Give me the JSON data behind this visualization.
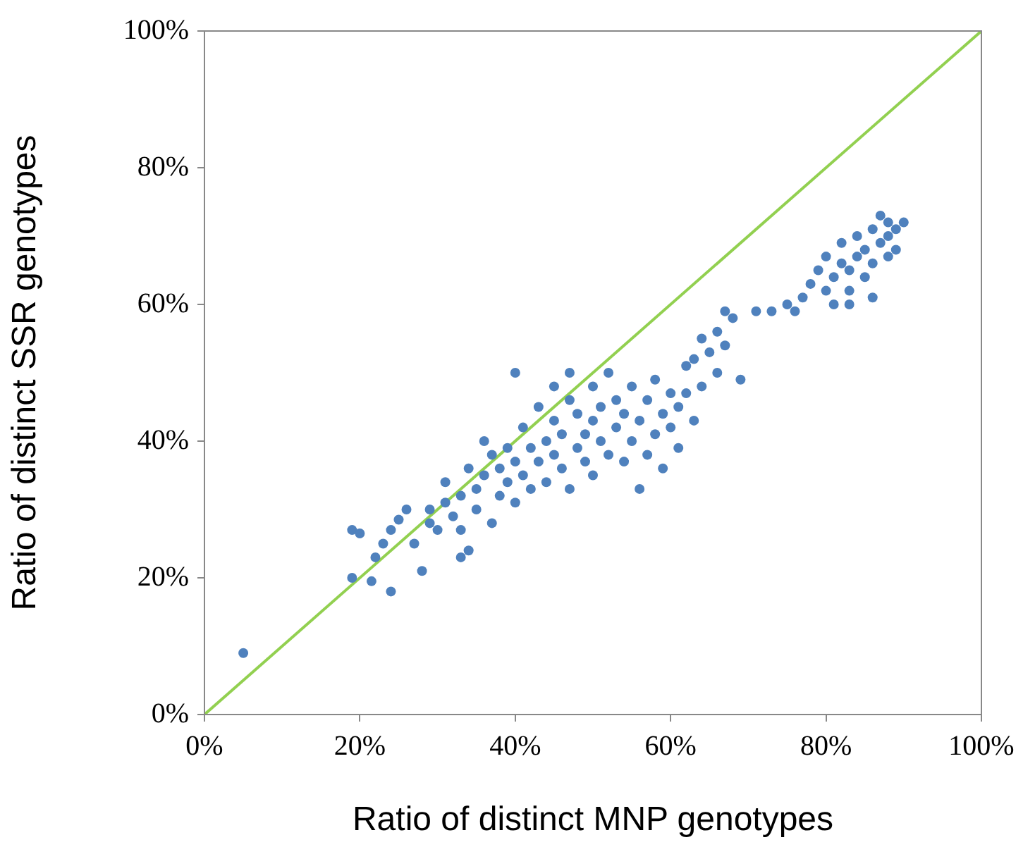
{
  "chart_data": {
    "type": "scatter",
    "xlabel": "Ratio of distinct MNP genotypes",
    "ylabel": "Ratio of distinct SSR genotypes",
    "xlim": [
      0,
      100
    ],
    "ylim": [
      0,
      100
    ],
    "xticks": [
      {
        "value": 0,
        "label": "0%"
      },
      {
        "value": 20,
        "label": "20%"
      },
      {
        "value": 40,
        "label": "40%"
      },
      {
        "value": 60,
        "label": "60%"
      },
      {
        "value": 80,
        "label": "80%"
      },
      {
        "value": 100,
        "label": "100%"
      }
    ],
    "yticks": [
      {
        "value": 0,
        "label": "0%"
      },
      {
        "value": 20,
        "label": "20%"
      },
      {
        "value": 40,
        "label": "40%"
      },
      {
        "value": 60,
        "label": "60%"
      },
      {
        "value": 80,
        "label": "80%"
      },
      {
        "value": 100,
        "label": "100%"
      }
    ],
    "grid": false,
    "legend": false,
    "marker": "circle",
    "series": [
      {
        "color": "#4f81bd",
        "x": [
          5,
          19,
          20,
          19,
          21.5,
          22,
          23,
          24,
          24,
          25,
          26,
          27,
          28,
          29,
          29,
          30,
          31,
          31,
          32,
          33,
          33,
          33,
          34,
          34,
          35,
          35,
          36,
          36,
          37,
          37,
          38,
          38,
          39,
          39,
          40,
          40,
          40,
          41,
          41,
          42,
          42,
          43,
          43,
          44,
          44,
          45,
          45,
          45,
          46,
          46,
          47,
          47,
          47,
          48,
          48,
          49,
          49,
          50,
          50,
          50,
          51,
          51,
          52,
          52,
          53,
          53,
          54,
          54,
          55,
          55,
          56,
          56,
          57,
          57,
          58,
          58,
          59,
          59,
          60,
          60,
          61,
          61,
          62,
          62,
          63,
          63,
          64,
          64,
          65,
          66,
          66,
          67,
          67,
          68,
          69,
          71,
          73,
          75,
          76,
          77,
          78,
          79,
          80,
          80,
          81,
          81,
          82,
          82,
          83,
          83,
          84,
          84,
          85,
          85,
          86,
          86,
          87,
          87,
          88,
          88,
          88,
          89,
          89,
          90,
          86,
          83
        ],
        "values": [
          9,
          27,
          26.5,
          20,
          19.5,
          23,
          25,
          18,
          27,
          28.5,
          30,
          25,
          21,
          28,
          30,
          27,
          31,
          34,
          29,
          23,
          27,
          32,
          24,
          36,
          30,
          33,
          40,
          35,
          28,
          38,
          32,
          36,
          34,
          39,
          31,
          37,
          50,
          35,
          42,
          33,
          39,
          45,
          37,
          40,
          34,
          43,
          48,
          38,
          36,
          41,
          46,
          33,
          50,
          39,
          44,
          37,
          41,
          48,
          43,
          35,
          40,
          45,
          38,
          50,
          42,
          46,
          37,
          44,
          40,
          48,
          33,
          43,
          46,
          38,
          41,
          49,
          44,
          36,
          47,
          42,
          39,
          45,
          51,
          47,
          43,
          52,
          48,
          55,
          53,
          56,
          50,
          59,
          54,
          58,
          49,
          59,
          59,
          60,
          59,
          61,
          63,
          65,
          62,
          67,
          60,
          64,
          66,
          69,
          62,
          65,
          67,
          70,
          64,
          68,
          71,
          66,
          69,
          73,
          67,
          72,
          70,
          71,
          68,
          72,
          61,
          60
        ]
      },
      {
        "type": "line",
        "color": "#92d050",
        "x": [
          0,
          100
        ],
        "values": [
          0,
          100
        ],
        "marker": "none"
      }
    ]
  }
}
